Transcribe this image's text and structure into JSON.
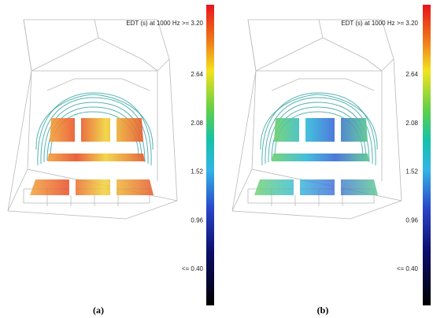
{
  "panels": [
    {
      "caption": "(a)",
      "colorbar": {
        "title": "EDT (s)  at 1000 Hz >= 3.20",
        "ticks": [
          "2.64",
          "2.08",
          "1.52",
          "0.96",
          "<= 0.40"
        ]
      }
    },
    {
      "caption": "(b)",
      "colorbar": {
        "title": "EDT (s)  at 1000 Hz >= 3.20",
        "ticks": [
          "2.64",
          "2.08",
          "1.52",
          "0.96",
          "<= 0.40"
        ]
      }
    }
  ]
}
